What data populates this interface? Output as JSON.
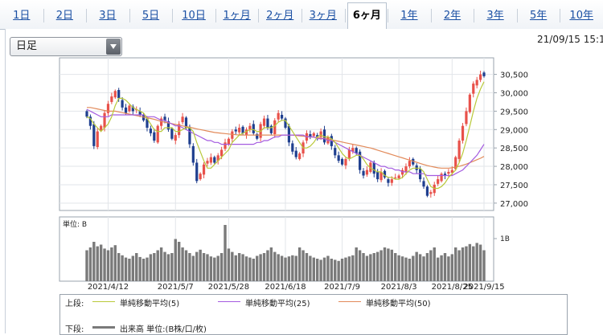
{
  "tabs": [
    {
      "label": "1日"
    },
    {
      "label": "2日"
    },
    {
      "label": "3日"
    },
    {
      "label": "5日"
    },
    {
      "label": "10日"
    },
    {
      "label": "1ヶ月"
    },
    {
      "label": "2ヶ月"
    },
    {
      "label": "3ヶ月"
    },
    {
      "label": "6ヶ月",
      "active": true
    },
    {
      "label": "1年"
    },
    {
      "label": "2年"
    },
    {
      "label": "3年"
    },
    {
      "label": "5年"
    },
    {
      "label": "10年"
    }
  ],
  "select": {
    "value": "日足"
  },
  "timestamp": "21/09/15 15:1",
  "volume_panel": {
    "unit_label": "単位: B",
    "scale_label": "1B"
  },
  "legend": {
    "upper_label": "上段:",
    "lower_label": "下段:",
    "ma5": "単純移動平均(5)",
    "ma25": "単純移動平均(25)",
    "ma50": "単純移動平均(50)",
    "volume": "出来高 単位:(B株/口/枚)",
    "colors": {
      "ma5": "#b9c93a",
      "ma25": "#a45be0",
      "ma50": "#e28a5a",
      "up": "#e8514a",
      "down": "#1f3f8f",
      "volume": "#7a7a7a"
    }
  },
  "chart_data": {
    "type": "candlestick",
    "x_tick_labels": [
      "2021/4/12",
      "2021/5/7",
      "2021/5/28",
      "2021/6/18",
      "2021/7/9",
      "2021/8/3",
      "2021/8/25",
      "2021/9/15"
    ],
    "y_tick_labels": [
      "30,500",
      "30,000",
      "29,500",
      "29,000",
      "28,500",
      "28,000",
      "27,500",
      "27,000"
    ],
    "y_ticks": [
      30500,
      30000,
      29500,
      29000,
      28500,
      28000,
      27500,
      27000
    ],
    "ylim": [
      26800,
      30950
    ],
    "close_series": [
      29350,
      29100,
      28550,
      28950,
      29100,
      29450,
      29700,
      29900,
      30050,
      29850,
      29600,
      29450,
      29650,
      29500,
      29550,
      29400,
      29250,
      29050,
      28900,
      28700,
      29100,
      29300,
      29250,
      29000,
      28750,
      28850,
      29150,
      29350,
      29050,
      28600,
      28100,
      27600,
      27800,
      28050,
      28150,
      28250,
      28100,
      28300,
      28450,
      28650,
      28750,
      28950,
      28950,
      29050,
      28900,
      29000,
      29100,
      28900,
      28750,
      29150,
      29300,
      29050,
      28900,
      29250,
      29450,
      29300,
      29050,
      28650,
      28400,
      28250,
      28350,
      28650,
      28900,
      28800,
      28900,
      28800,
      28950,
      28650,
      28800,
      28550,
      28300,
      28150,
      28050,
      28200,
      28450,
      28500,
      28350,
      27900,
      27750,
      27900,
      28100,
      27800,
      27650,
      27850,
      27700,
      27550,
      27650,
      27700,
      27750,
      27900,
      28000,
      28150,
      28050,
      27900,
      27650,
      27450,
      27200,
      27300,
      27500,
      27650,
      27800,
      27750,
      27850,
      27900,
      28250,
      28700,
      29100,
      29500,
      29950,
      30250,
      30350,
      30500,
      30450
    ],
    "ma5": [
      29350,
      29300,
      29150,
      29050,
      28950,
      29050,
      29150,
      29350,
      29650,
      29850,
      29850,
      29800,
      29700,
      29600,
      29550,
      29500,
      29450,
      29300,
      29150,
      29000,
      28950,
      28950,
      29050,
      29050,
      29050,
      28950,
      28950,
      29000,
      29050,
      29050,
      28950,
      28650,
      28400,
      28150,
      27950,
      27950,
      28050,
      28150,
      28250,
      28350,
      28450,
      28650,
      28750,
      28850,
      28900,
      28950,
      29000,
      29000,
      28950,
      28950,
      29050,
      29050,
      29050,
      29100,
      29200,
      29250,
      29250,
      29100,
      28950,
      28800,
      28650,
      28500,
      28500,
      28550,
      28650,
      28800,
      28850,
      28800,
      28800,
      28750,
      28650,
      28500,
      28350,
      28250,
      28200,
      28250,
      28300,
      28300,
      28200,
      28050,
      27950,
      27900,
      27850,
      27850,
      27750,
      27700,
      27700,
      27650,
      27650,
      27700,
      27800,
      27900,
      27950,
      27950,
      27950,
      27850,
      27650,
      27450,
      27400,
      27400,
      27450,
      27550,
      27700,
      27800,
      27900,
      28100,
      28350,
      28700,
      29100,
      29500,
      29850,
      30100,
      30300
    ],
    "ma25": [
      29550,
      29500,
      29450,
      29400,
      29350,
      29350,
      29350,
      29400,
      29400,
      29400,
      29400,
      29400,
      29400,
      29400,
      29400,
      29400,
      29400,
      29350,
      29350,
      29350,
      29300,
      29250,
      29250,
      29200,
      29150,
      29100,
      29100,
      29050,
      29000,
      28950,
      28900,
      28850,
      28800,
      28750,
      28700,
      28700,
      28650,
      28650,
      28600,
      28600,
      28600,
      28600,
      28600,
      28600,
      28600,
      28600,
      28600,
      28600,
      28650,
      28650,
      28700,
      28700,
      28750,
      28800,
      28800,
      28850,
      28850,
      28850,
      28850,
      28850,
      28850,
      28850,
      28800,
      28800,
      28800,
      28750,
      28750,
      28750,
      28700,
      28700,
      28650,
      28600,
      28550,
      28500,
      28450,
      28400,
      28350,
      28300,
      28250,
      28200,
      28150,
      28100,
      28050,
      28000,
      28000,
      27950,
      27950,
      27900,
      27900,
      27850,
      27850,
      27850,
      27800,
      27800,
      27800,
      27800,
      27750,
      27750,
      27750,
      27750,
      27750,
      27750,
      27750,
      27750,
      27800,
      27850,
      27900,
      28000,
      28100,
      28200,
      28300,
      28450,
      28600
    ],
    "ma50": [
      29600,
      29600,
      29580,
      29560,
      29540,
      29520,
      29500,
      29500,
      29500,
      29480,
      29460,
      29440,
      29420,
      29400,
      29380,
      29360,
      29340,
      29320,
      29300,
      29280,
      29250,
      29220,
      29200,
      29180,
      29160,
      29140,
      29120,
      29100,
      29080,
      29060,
      29040,
      29020,
      29000,
      28980,
      28960,
      28940,
      28920,
      28910,
      28900,
      28890,
      28880,
      28870,
      28860,
      28850,
      28850,
      28850,
      28850,
      28850,
      28850,
      28850,
      28850,
      28850,
      28850,
      28850,
      28850,
      28850,
      28850,
      28850,
      28850,
      28840,
      28830,
      28820,
      28810,
      28800,
      28790,
      28780,
      28770,
      28760,
      28740,
      28720,
      28700,
      28680,
      28660,
      28640,
      28620,
      28600,
      28580,
      28560,
      28540,
      28520,
      28500,
      28470,
      28440,
      28410,
      28380,
      28350,
      28320,
      28290,
      28260,
      28230,
      28200,
      28170,
      28140,
      28110,
      28080,
      28050,
      28020,
      28000,
      27980,
      27960,
      27950,
      27950,
      27950,
      27960,
      27980,
      28000,
      28030,
      28060,
      28100,
      28140,
      28180,
      28220,
      28270
    ],
    "volume_relative": [
      0.55,
      0.6,
      0.7,
      0.62,
      0.65,
      0.58,
      0.55,
      0.6,
      0.64,
      0.5,
      0.46,
      0.42,
      0.4,
      0.45,
      0.5,
      0.43,
      0.4,
      0.42,
      0.48,
      0.5,
      0.55,
      0.6,
      0.52,
      0.48,
      0.5,
      0.75,
      0.7,
      0.6,
      0.55,
      0.5,
      0.45,
      0.52,
      0.56,
      0.5,
      0.48,
      0.44,
      0.42,
      0.45,
      0.5,
      1.0,
      0.58,
      0.52,
      0.46,
      0.5,
      0.48,
      0.44,
      0.42,
      0.4,
      0.45,
      0.48,
      0.5,
      0.55,
      0.6,
      0.52,
      0.48,
      0.45,
      0.42,
      0.44,
      0.46,
      0.45,
      0.6,
      0.55,
      0.5,
      0.45,
      0.42,
      0.4,
      0.38,
      0.42,
      0.45,
      0.4,
      0.38,
      0.36,
      0.4,
      0.42,
      0.44,
      0.46,
      0.6,
      0.55,
      0.5,
      0.45,
      0.48,
      0.5,
      0.52,
      0.55,
      0.6,
      0.58,
      0.56,
      0.5,
      0.46,
      0.44,
      0.42,
      0.4,
      0.45,
      0.52,
      0.48,
      0.44,
      0.5,
      0.55,
      0.6,
      0.42,
      0.46,
      0.5,
      0.44,
      0.48,
      0.6,
      0.55,
      0.6,
      0.62,
      0.66,
      0.62,
      0.68,
      0.65,
      0.55
    ]
  }
}
